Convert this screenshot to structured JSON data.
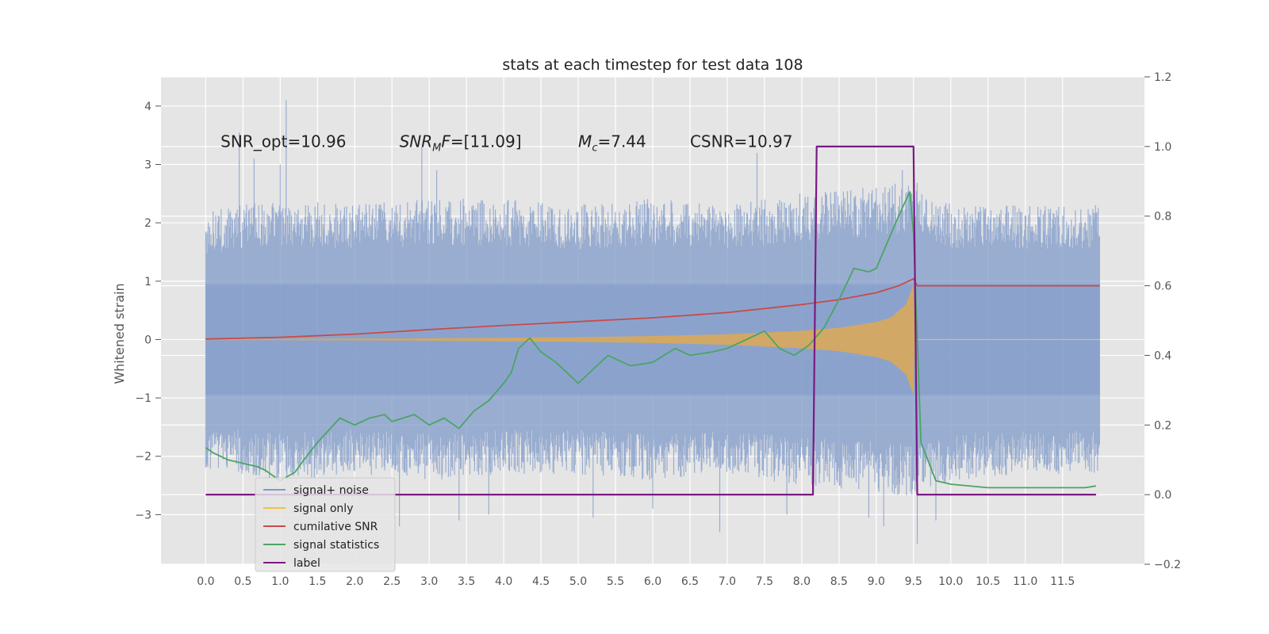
{
  "chart_data": {
    "type": "line",
    "title": "stats at each timestep for test data 108",
    "ylabel": "Whitened strain",
    "xlim": [
      -0.6,
      12.6
    ],
    "ylim": [
      -3.85,
      4.5
    ],
    "y2lim": [
      -0.2,
      1.2
    ],
    "x_ticks": [
      "0.0",
      "0.5",
      "1.0",
      "1.5",
      "2.0",
      "2.5",
      "3.0",
      "3.5",
      "4.0",
      "4.5",
      "5.0",
      "5.5",
      "6.0",
      "6.5",
      "7.0",
      "7.5",
      "8.0",
      "8.5",
      "9.0",
      "9.5",
      "10.0",
      "10.5",
      "11.0",
      "11.5"
    ],
    "y_ticks": [
      "4",
      "3",
      "2",
      "1",
      "0",
      "−1",
      "−2",
      "−3"
    ],
    "y2_ticks": [
      "1.2",
      "1.0",
      "0.8",
      "0.6",
      "0.4",
      "0.2",
      "0.0",
      "−0.2"
    ],
    "grid": true,
    "legend_position": "lower-left",
    "annotations": [
      {
        "text": "SNR_opt=10.96",
        "x": 0.2,
        "y": 3.3
      },
      {
        "text": "SNR_MF=[11.09]",
        "x": 2.6,
        "y": 3.3
      },
      {
        "text": "M_c=7.44",
        "x": 5.0,
        "y": 3.3
      },
      {
        "text": "CSNR=10.97",
        "x": 6.5,
        "y": 3.3
      }
    ],
    "series": [
      {
        "name": "signal+ noise",
        "axis": "left",
        "color": "#7f9ac8",
        "envelope": {
          "t": [
            0.0,
            1.0,
            2.0,
            3.0,
            4.0,
            5.0,
            6.0,
            7.0,
            8.0,
            9.0,
            9.5,
            10.0,
            11.0,
            12.0
          ],
          "upper": [
            2.1,
            2.3,
            2.2,
            2.3,
            2.3,
            2.2,
            2.3,
            2.2,
            2.4,
            2.5,
            2.6,
            2.2,
            2.2,
            2.2
          ],
          "lower": [
            -2.1,
            -2.3,
            -2.2,
            -2.3,
            -2.2,
            -2.2,
            -2.3,
            -2.2,
            -2.4,
            -2.5,
            -2.6,
            -2.3,
            -2.2,
            -2.2
          ]
        },
        "spikes_up": [
          [
            0.45,
            3.55
          ],
          [
            0.65,
            3.1
          ],
          [
            1.08,
            4.1
          ],
          [
            1.0,
            3.0
          ],
          [
            2.9,
            3.3
          ],
          [
            3.1,
            2.9
          ],
          [
            7.4,
            3.2
          ],
          [
            9.35,
            2.9
          ],
          [
            9.5,
            2.95
          ]
        ],
        "spikes_down": [
          [
            2.6,
            -3.2
          ],
          [
            3.4,
            -3.1
          ],
          [
            3.8,
            -3.0
          ],
          [
            5.2,
            -3.05
          ],
          [
            6.0,
            -2.9
          ],
          [
            6.9,
            -3.3
          ],
          [
            7.8,
            -3.0
          ],
          [
            8.9,
            -3.05
          ],
          [
            9.1,
            -3.2
          ],
          [
            9.55,
            -3.5
          ],
          [
            9.8,
            -3.1
          ]
        ]
      },
      {
        "name": "signal only",
        "axis": "left",
        "color": "#f0c040",
        "fill": "#d8a85a",
        "amplitude": {
          "t": [
            0.0,
            1.0,
            2.0,
            3.0,
            4.0,
            5.0,
            6.0,
            7.0,
            8.0,
            8.5,
            9.0,
            9.2,
            9.4,
            9.5,
            9.52
          ],
          "a": [
            0.01,
            0.012,
            0.015,
            0.02,
            0.03,
            0.04,
            0.06,
            0.09,
            0.15,
            0.2,
            0.3,
            0.38,
            0.6,
            0.95,
            0.0
          ]
        }
      },
      {
        "name": "cumilative SNR",
        "axis": "right",
        "color": "#c84a4a",
        "x": [
          0.0,
          1.0,
          2.0,
          3.0,
          4.0,
          5.0,
          6.0,
          7.0,
          8.0,
          8.5,
          9.0,
          9.3,
          9.5,
          9.55,
          12.0
        ],
        "y": [
          0.447,
          0.452,
          0.461,
          0.474,
          0.486,
          0.497,
          0.508,
          0.523,
          0.546,
          0.56,
          0.58,
          0.6,
          0.62,
          0.6,
          0.6
        ]
      },
      {
        "name": "signal statistics",
        "axis": "right",
        "color": "#4aa564",
        "x": [
          0.0,
          0.1,
          0.3,
          0.5,
          0.7,
          0.8,
          1.0,
          1.2,
          1.3,
          1.5,
          1.8,
          2.0,
          2.2,
          2.4,
          2.5,
          2.8,
          3.0,
          3.2,
          3.4,
          3.6,
          3.8,
          4.0,
          4.1,
          4.2,
          4.35,
          4.5,
          4.7,
          5.0,
          5.2,
          5.4,
          5.7,
          6.0,
          6.3,
          6.5,
          6.8,
          7.0,
          7.3,
          7.5,
          7.7,
          7.9,
          8.1,
          8.3,
          8.5,
          8.7,
          8.9,
          9.0,
          9.2,
          9.3,
          9.45,
          9.5,
          9.6,
          9.8,
          10.0,
          10.5,
          11.0,
          11.5,
          11.8,
          11.95
        ],
        "y": [
          0.135,
          0.12,
          0.1,
          0.09,
          0.08,
          0.07,
          0.04,
          0.065,
          0.095,
          0.15,
          0.22,
          0.2,
          0.22,
          0.23,
          0.21,
          0.23,
          0.2,
          0.22,
          0.19,
          0.24,
          0.27,
          0.32,
          0.35,
          0.42,
          0.45,
          0.41,
          0.38,
          0.32,
          0.36,
          0.4,
          0.37,
          0.38,
          0.42,
          0.4,
          0.41,
          0.42,
          0.45,
          0.47,
          0.42,
          0.4,
          0.43,
          0.48,
          0.56,
          0.65,
          0.64,
          0.65,
          0.75,
          0.8,
          0.87,
          0.75,
          0.15,
          0.04,
          0.03,
          0.02,
          0.02,
          0.02,
          0.02,
          0.025
        ]
      },
      {
        "name": "label",
        "axis": "right",
        "color": "#7a1a82",
        "x": [
          0.0,
          8.15,
          8.2,
          9.5,
          9.55,
          11.95
        ],
        "y": [
          0.0,
          0.0,
          1.0,
          1.0,
          0.0,
          0.0
        ]
      }
    ],
    "legend": [
      "signal+ noise",
      "signal only",
      "cumilative SNR",
      "signal statistics",
      "label"
    ]
  }
}
